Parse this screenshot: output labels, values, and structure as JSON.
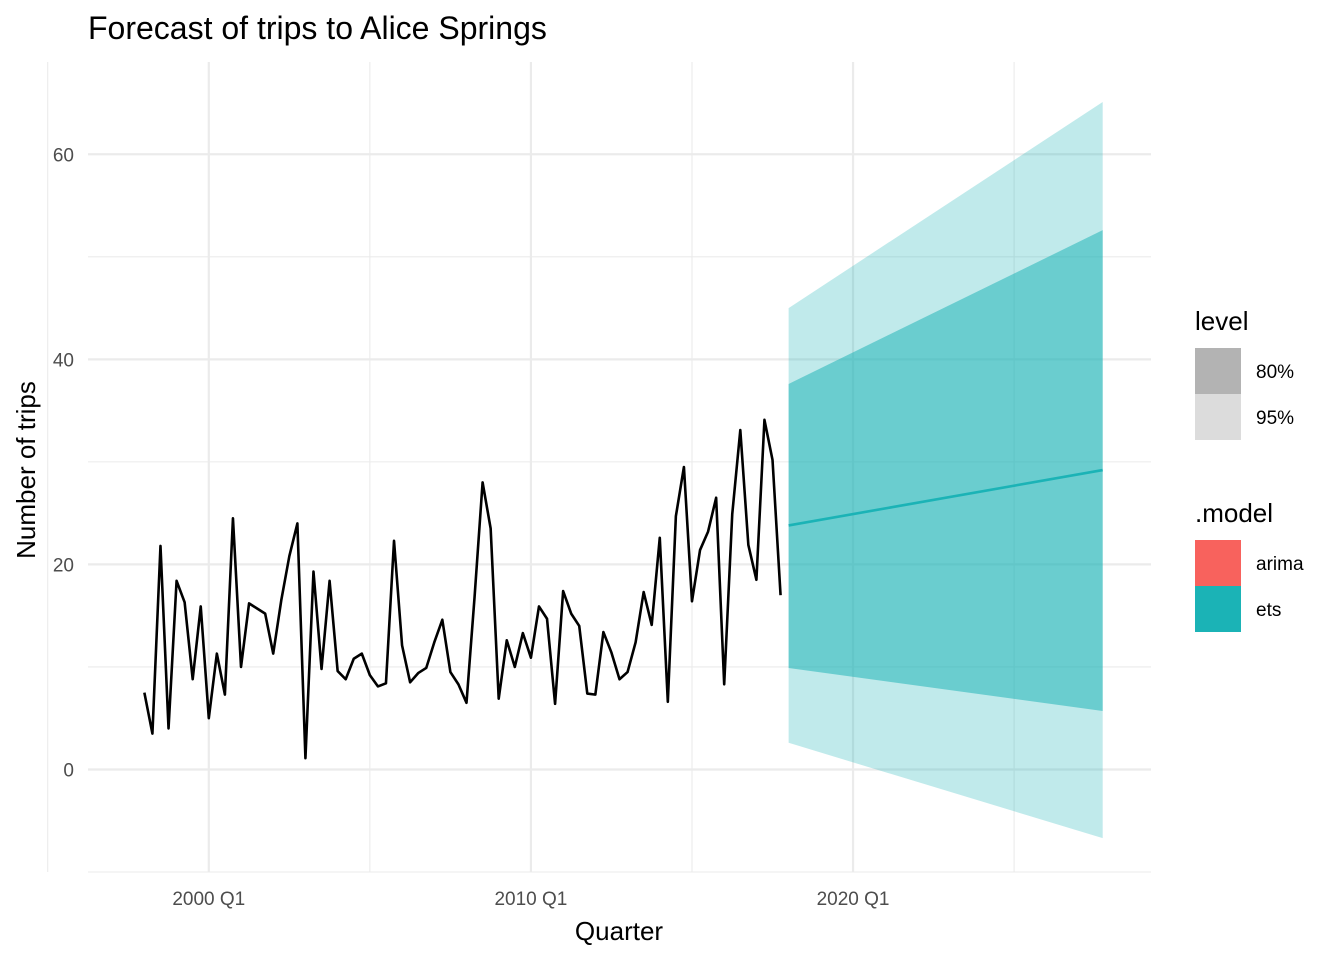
{
  "chart_data": {
    "type": "line",
    "title": "Forecast of trips to Alice Springs",
    "xlabel": "Quarter",
    "ylabel": "Number of trips",
    "grid": true,
    "legend_position": "right",
    "xlim": [
      "1996 Q2",
      "2029 Q2"
    ],
    "ylim": [
      -10,
      69
    ],
    "x_ticks": [
      {
        "label": "2000 Q1",
        "value": 2000.0
      },
      {
        "label": "2010 Q1",
        "value": 2010.0
      },
      {
        "label": "2020 Q1",
        "value": 2020.0
      }
    ],
    "x_minor_ticks": [
      1995.0,
      2005.0,
      2015.0,
      2025.0
    ],
    "y_ticks": [
      {
        "label": "0",
        "value": 0
      },
      {
        "label": "20",
        "value": 20
      },
      {
        "label": "40",
        "value": 40
      },
      {
        "label": "60",
        "value": 60
      }
    ],
    "y_minor_ticks": [
      -10,
      10,
      30,
      50
    ],
    "history": {
      "name": "trips",
      "color": "#000000",
      "start_quarter": "1998 Q1",
      "values": [
        7.5,
        3.5,
        21.8,
        4.0,
        18.4,
        16.3,
        8.8,
        15.9,
        5.0,
        11.3,
        7.3,
        24.5,
        10.0,
        16.2,
        15.7,
        15.2,
        11.3,
        16.5,
        20.8,
        24.0,
        1.1,
        19.3,
        9.8,
        18.4,
        9.6,
        8.8,
        10.8,
        11.3,
        9.2,
        8.1,
        8.4,
        22.3,
        12.1,
        8.5,
        9.4,
        9.9,
        12.4,
        14.6,
        9.5,
        8.3,
        6.5,
        16.8,
        28.0,
        23.5,
        6.9,
        12.6,
        10.0,
        13.3,
        10.9,
        15.9,
        14.7,
        6.4,
        17.4,
        15.2,
        14.0,
        7.4,
        7.3,
        13.4,
        11.4,
        8.8,
        9.5,
        12.4,
        17.3,
        14.1,
        22.6,
        6.6,
        24.7,
        29.5,
        16.4,
        21.4,
        23.2,
        26.5,
        8.3,
        24.9,
        33.1,
        21.9,
        18.5,
        34.1,
        30.2,
        17.0
      ]
    },
    "forecast": {
      "model": "ets",
      "color": "#1bb3b6",
      "start_quarter": "2018 Q1",
      "end_quarter": "2027 Q4",
      "mean": [
        23.8,
        29.2
      ],
      "level_80": {
        "lower": [
          9.9,
          5.7
        ],
        "upper": [
          37.6,
          52.6
        ]
      },
      "level_95": {
        "lower": [
          2.6,
          -6.7
        ],
        "upper": [
          45.0,
          65.1
        ]
      }
    },
    "legend": {
      "level": {
        "title": "level",
        "items": [
          {
            "label": "80%",
            "color": "#b3b3b3"
          },
          {
            "label": "95%",
            "color": "#dcdcdc"
          }
        ]
      },
      "model": {
        "title": ".model",
        "items": [
          {
            "label": "arima",
            "color": "#f8625d"
          },
          {
            "label": "ets",
            "color": "#1bb3b6"
          }
        ]
      }
    }
  }
}
